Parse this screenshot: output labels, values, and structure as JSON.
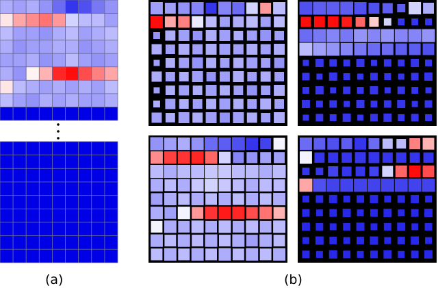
{
  "labels": {
    "a": "(a)",
    "b": "(b)"
  },
  "colors": {
    "blue_dark": "#0000e6",
    "blue_light": "#c8c8ff",
    "white": "#ffffff",
    "red": "#ff0000",
    "frame": "#000000",
    "grid_line": "#6a6a9a"
  },
  "panel_a": {
    "upper_grid": [
      [
        0.35,
        0.4,
        0.35,
        0.45,
        0.6,
        0.8,
        0.7,
        0.55,
        0.45
      ],
      [
        -0.1,
        -0.35,
        -0.45,
        -0.55,
        -0.4,
        0.2,
        0.3,
        0.3,
        0.4
      ],
      [
        0.3,
        0.4,
        0.4,
        0.45,
        0.35,
        0.3,
        0.4,
        0.35,
        0.3
      ],
      [
        0.35,
        0.45,
        0.4,
        0.4,
        0.35,
        0.35,
        0.45,
        0.4,
        0.35
      ],
      [
        0.4,
        0.4,
        0.35,
        0.45,
        0.4,
        0.3,
        0.4,
        0.45,
        0.4
      ],
      [
        0.35,
        0.45,
        -0.05,
        -0.3,
        -0.85,
        -0.95,
        -0.7,
        -0.5,
        -0.35
      ],
      [
        -0.1,
        0.3,
        0.35,
        0.4,
        0.35,
        0.4,
        0.35,
        0.4,
        0.3
      ],
      [
        0.3,
        0.4,
        0.45,
        0.35,
        0.4,
        0.35,
        0.4,
        0.4,
        0.35
      ],
      [
        1,
        1,
        1,
        1,
        1,
        1,
        1,
        1,
        1
      ]
    ],
    "lower_grid_value": 1
  },
  "panel_b": [
    {
      "cells": [
        [
          0.4,
          0.4,
          0.45,
          0.5,
          0.8,
          0.5,
          0.6,
          0.2,
          -0.4,
          0.3
        ],
        [
          -0.95,
          -0.35,
          -0.5,
          0.1,
          0.3,
          0.4,
          0.35,
          0.3,
          0.4,
          0.3
        ],
        [
          0.45,
          0.35,
          0.4,
          0.45,
          0.35,
          0.4,
          0.35,
          0.4,
          0.45,
          0.4
        ],
        [
          0.35,
          0.4,
          0.35,
          0.4,
          0.35,
          0.4,
          0.4,
          0.35,
          0.4,
          0.35
        ],
        [
          0.4,
          0.35,
          0.4,
          0.45,
          0.35,
          0.4,
          0.35,
          0.4,
          0.4,
          0.45
        ],
        [
          0.35,
          0.4,
          0.35,
          0.4,
          0.45,
          0.4,
          0.35,
          0.4,
          0.35,
          0.4
        ],
        [
          0.4,
          0.35,
          0.4,
          0.35,
          0.4,
          0.35,
          0.4,
          0.45,
          0.4,
          0.35
        ],
        [
          0.35,
          0.4,
          0.35,
          0.4,
          0.35,
          0.4,
          0.35,
          0.4,
          0.35,
          0.4
        ],
        [
          0.4,
          0.35,
          0.4,
          0.35,
          0.4,
          0.45,
          0.4,
          0.35,
          0.4,
          0.35
        ]
      ],
      "sizes": [
        [
          0.9,
          0.8,
          0.85,
          0.9,
          0.8,
          0.95,
          0.9,
          0.85,
          0.8,
          0.9
        ],
        [
          0.9,
          0.8,
          0.85,
          0.85,
          0.8,
          0.75,
          0.8,
          0.85,
          0.75,
          0.8
        ],
        [
          0.5,
          0.75,
          0.8,
          0.7,
          0.8,
          0.8,
          0.7,
          0.75,
          0.8,
          0.7
        ],
        [
          0.75,
          0.7,
          0.8,
          0.75,
          0.8,
          0.8,
          0.75,
          0.8,
          0.75,
          0.8
        ],
        [
          0.45,
          0.7,
          0.75,
          0.8,
          0.75,
          0.7,
          0.75,
          0.8,
          0.7,
          0.75
        ],
        [
          0.75,
          0.7,
          0.7,
          0.8,
          0.7,
          0.75,
          0.8,
          0.7,
          0.75,
          0.7
        ],
        [
          0.45,
          0.7,
          0.75,
          0.7,
          0.8,
          0.75,
          0.7,
          0.75,
          0.7,
          0.8
        ],
        [
          0.5,
          0.75,
          0.7,
          0.7,
          0.75,
          0.8,
          0.75,
          0.7,
          0.8,
          0.7
        ],
        [
          0.75,
          0.7,
          0.8,
          0.75,
          0.8,
          0.75,
          0.8,
          0.75,
          0.7,
          0.8
        ]
      ]
    },
    {
      "cells": [
        [
          0.7,
          0.65,
          0.65,
          0.65,
          0.7,
          0.7,
          0.65,
          0.65,
          0.2,
          0.35
        ],
        [
          -0.95,
          -0.95,
          -0.95,
          -0.9,
          -0.6,
          -0.2,
          0.2,
          0.8,
          0.8,
          0.8
        ],
        [
          0.6,
          0.55,
          0.5,
          0.55,
          0.45,
          0.5,
          0.45,
          0.5,
          0.5,
          0.45
        ],
        [
          0.3,
          0.4,
          0.45,
          0.5,
          0.55,
          0.6,
          0.6,
          0.65,
          0.65,
          0.7
        ],
        [
          0.8,
          0.8,
          0.8,
          0.8,
          0.8,
          0.8,
          0.8,
          0.8,
          0.8,
          0.8
        ],
        [
          0.8,
          0.8,
          0.8,
          0.8,
          0.8,
          0.8,
          0.8,
          0.8,
          0.8,
          0.8
        ],
        [
          0.8,
          0.8,
          0.8,
          0.8,
          0.8,
          0.8,
          0.8,
          0.8,
          0.8,
          0.8
        ],
        [
          0.8,
          0.8,
          0.8,
          0.8,
          0.8,
          0.8,
          0.8,
          0.8,
          0.8,
          0.8
        ],
        [
          0.8,
          0.8,
          0.8,
          0.8,
          0.8,
          0.8,
          0.8,
          0.8,
          0.8,
          0.8
        ]
      ],
      "sizes": [
        [
          0.95,
          0.95,
          0.95,
          0.95,
          0.9,
          0.8,
          0.75,
          0.6,
          0.9,
          0.8
        ],
        [
          0.75,
          0.8,
          0.8,
          0.75,
          0.7,
          0.7,
          0.55,
          0.5,
          0.5,
          0.5
        ],
        [
          0.95,
          0.95,
          0.95,
          0.95,
          0.95,
          0.95,
          0.95,
          0.95,
          0.95,
          0.95
        ],
        [
          0.95,
          0.95,
          0.95,
          0.9,
          0.9,
          0.9,
          0.85,
          0.85,
          0.85,
          0.85
        ],
        [
          0.45,
          0.6,
          0.55,
          0.5,
          0.6,
          0.45,
          0.55,
          0.5,
          0.6,
          0.5
        ],
        [
          0.55,
          0.45,
          0.6,
          0.5,
          0.45,
          0.55,
          0.5,
          0.45,
          0.55,
          0.6
        ],
        [
          0.5,
          0.6,
          0.45,
          0.55,
          0.5,
          0.6,
          0.45,
          0.55,
          0.5,
          0.45
        ],
        [
          0.6,
          0.5,
          0.55,
          0.45,
          0.6,
          0.5,
          0.55,
          0.6,
          0.45,
          0.55
        ],
        [
          0.45,
          0.55,
          0.5,
          0.6,
          0.45,
          0.55,
          0.6,
          0.5,
          0.55,
          0.5
        ]
      ]
    },
    {
      "cells": [
        [
          0.45,
          0.4,
          0.35,
          0.45,
          0.6,
          0.65,
          0.7,
          0.8,
          0.75,
          0.05
        ],
        [
          -0.45,
          -0.75,
          -0.8,
          -0.85,
          -0.6,
          0.2,
          0.5,
          0.45,
          0.4,
          0.4
        ],
        [
          0.3,
          0.35,
          0.3,
          0.3,
          0.25,
          0.25,
          0.3,
          0.3,
          0.35,
          0.3
        ],
        [
          0.35,
          0.3,
          0.35,
          0.25,
          0.2,
          0.25,
          0.3,
          0.35,
          0.3,
          0.3
        ],
        [
          0.4,
          0.35,
          0.3,
          0.35,
          0.3,
          0.35,
          0.3,
          0.35,
          0.3,
          0.35
        ],
        [
          0.35,
          0.4,
          0.05,
          -0.4,
          -0.8,
          -0.9,
          -0.85,
          -0.7,
          -0.55,
          -0.3
        ],
        [
          0.05,
          0.35,
          0.35,
          0.3,
          0.35,
          0.3,
          0.35,
          0.3,
          0.35,
          0.3
        ],
        [
          0.35,
          0.3,
          0.35,
          0.3,
          0.35,
          0.3,
          0.35,
          0.4,
          0.35,
          0.3
        ],
        [
          0.3,
          0.35,
          0.3,
          0.35,
          0.3,
          0.35,
          0.3,
          0.35,
          0.3,
          0.35
        ]
      ],
      "sizes": [
        [
          0.95,
          0.9,
          0.9,
          0.9,
          0.95,
          0.9,
          0.95,
          0.9,
          0.8,
          0.85
        ],
        [
          0.9,
          0.9,
          0.9,
          0.9,
          0.9,
          0.85,
          0.8,
          0.8,
          0.8,
          0.8
        ],
        [
          0.95,
          0.95,
          0.95,
          0.95,
          0.95,
          0.95,
          0.95,
          0.95,
          0.95,
          0.95
        ],
        [
          0.9,
          0.85,
          0.9,
          0.9,
          0.95,
          0.9,
          0.85,
          0.9,
          0.9,
          0.85
        ],
        [
          0.85,
          0.9,
          0.85,
          0.9,
          0.85,
          0.9,
          0.85,
          0.9,
          0.85,
          0.9
        ],
        [
          0.9,
          0.85,
          0.9,
          0.85,
          0.9,
          0.9,
          0.9,
          0.85,
          0.9,
          0.85
        ],
        [
          0.85,
          0.9,
          0.85,
          0.9,
          0.85,
          0.9,
          0.85,
          0.9,
          0.85,
          0.9
        ],
        [
          0.9,
          0.85,
          0.9,
          0.85,
          0.9,
          0.85,
          0.9,
          0.85,
          0.9,
          0.85
        ],
        [
          0.85,
          0.9,
          0.85,
          0.9,
          0.85,
          0.9,
          0.85,
          0.9,
          0.85,
          0.9
        ]
      ]
    },
    {
      "cells": [
        [
          0.6,
          0.65,
          0.7,
          0.65,
          0.8,
          0.6,
          0.3,
          0.3,
          -0.5,
          -0.3
        ],
        [
          0.05,
          0.8,
          0.8,
          0.8,
          0.8,
          0.8,
          0.8,
          0.8,
          0.8,
          0.8
        ],
        [
          0.8,
          0.8,
          0.75,
          0.8,
          0.8,
          0.75,
          0.2,
          -0.6,
          -0.95,
          -0.7
        ],
        [
          -0.35,
          0.7,
          0.75,
          0.75,
          0.75,
          0.75,
          0.75,
          0.75,
          0.75,
          0.75
        ],
        [
          0.85,
          0.85,
          0.85,
          0.85,
          0.85,
          0.85,
          0.85,
          0.85,
          0.85,
          0.85
        ],
        [
          0.85,
          0.85,
          0.85,
          0.85,
          0.85,
          0.85,
          0.85,
          0.85,
          0.85,
          0.85
        ],
        [
          0.85,
          0.85,
          0.85,
          0.85,
          0.85,
          0.85,
          0.85,
          0.85,
          0.85,
          0.85
        ],
        [
          0.85,
          0.85,
          0.85,
          0.85,
          0.85,
          0.85,
          0.85,
          0.85,
          0.85,
          0.85
        ],
        [
          0.85,
          0.85,
          0.85,
          0.85,
          0.85,
          0.85,
          0.85,
          0.85,
          0.85,
          0.85
        ]
      ],
      "sizes": [
        [
          0.9,
          0.85,
          0.85,
          0.8,
          0.85,
          0.8,
          0.75,
          0.7,
          0.8,
          0.85
        ],
        [
          0.9,
          0.75,
          0.75,
          0.75,
          0.8,
          0.8,
          0.75,
          0.75,
          0.75,
          0.75
        ],
        [
          0.55,
          0.55,
          0.75,
          0.7,
          0.7,
          0.7,
          0.8,
          0.85,
          0.85,
          0.85
        ],
        [
          0.95,
          0.95,
          0.95,
          0.95,
          0.95,
          0.95,
          0.95,
          0.95,
          0.95,
          0.95
        ],
        [
          0.5,
          0.55,
          0.6,
          0.5,
          0.55,
          0.6,
          0.5,
          0.55,
          0.6,
          0.5
        ],
        [
          0.55,
          0.5,
          0.55,
          0.6,
          0.5,
          0.55,
          0.6,
          0.5,
          0.55,
          0.6
        ],
        [
          0.6,
          0.55,
          0.5,
          0.55,
          0.6,
          0.5,
          0.55,
          0.6,
          0.5,
          0.55
        ],
        [
          0.5,
          0.6,
          0.55,
          0.5,
          0.55,
          0.6,
          0.5,
          0.55,
          0.6,
          0.5
        ],
        [
          0.55,
          0.5,
          0.6,
          0.55,
          0.5,
          0.55,
          0.6,
          0.5,
          0.55,
          0.6
        ]
      ]
    }
  ]
}
